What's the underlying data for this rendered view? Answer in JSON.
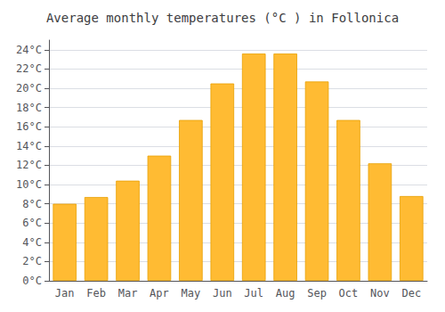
{
  "chart_data": {
    "type": "bar",
    "title": "Average monthly temperatures (°C ) in Follonica",
    "categories": [
      "Jan",
      "Feb",
      "Mar",
      "Apr",
      "May",
      "Jun",
      "Jul",
      "Aug",
      "Sep",
      "Oct",
      "Nov",
      "Dec"
    ],
    "values": [
      8.0,
      8.7,
      10.4,
      13.0,
      16.7,
      20.5,
      23.6,
      23.6,
      20.7,
      16.7,
      12.2,
      8.8
    ],
    "color": "#FFBB33",
    "ylim": [
      0,
      25
    ],
    "yticks": [
      {
        "value": 0,
        "label": "0°C"
      },
      {
        "value": 2,
        "label": "2°C"
      },
      {
        "value": 4,
        "label": "4°C"
      },
      {
        "value": 6,
        "label": "6°C"
      },
      {
        "value": 8,
        "label": "8°C"
      },
      {
        "value": 10,
        "label": "10°C"
      },
      {
        "value": 12,
        "label": "12°C"
      },
      {
        "value": 14,
        "label": "14°C"
      },
      {
        "value": 16,
        "label": "16°C"
      },
      {
        "value": 18,
        "label": "18°C"
      },
      {
        "value": 20,
        "label": "20°C"
      },
      {
        "value": 22,
        "label": "22°C"
      },
      {
        "value": 24,
        "label": "24°C"
      }
    ],
    "grid": true
  }
}
